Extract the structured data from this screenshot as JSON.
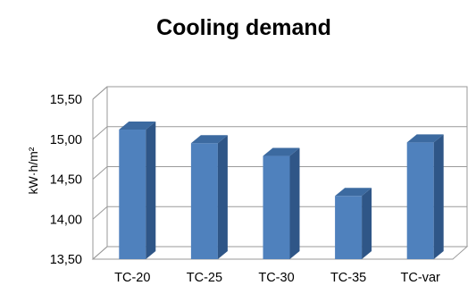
{
  "chart_data": {
    "type": "bar",
    "title": "Cooling demand",
    "xlabel": "",
    "ylabel": "kW·h/m²",
    "categories": [
      "TC-20",
      "TC-25",
      "TC-30",
      "TC-35",
      "TC-var"
    ],
    "values": [
      15.12,
      14.95,
      14.79,
      14.29,
      14.96
    ],
    "ylim": [
      13.5,
      15.5
    ],
    "y_ticks": [
      "13,50",
      "14,00",
      "14,50",
      "15,00",
      "15,50"
    ],
    "grid": true,
    "legend": "none",
    "style": "3d-column",
    "bar_color": "#4f81bd",
    "bar_side_color": "#2f5687",
    "bar_top_color": "#3c6aa0"
  }
}
